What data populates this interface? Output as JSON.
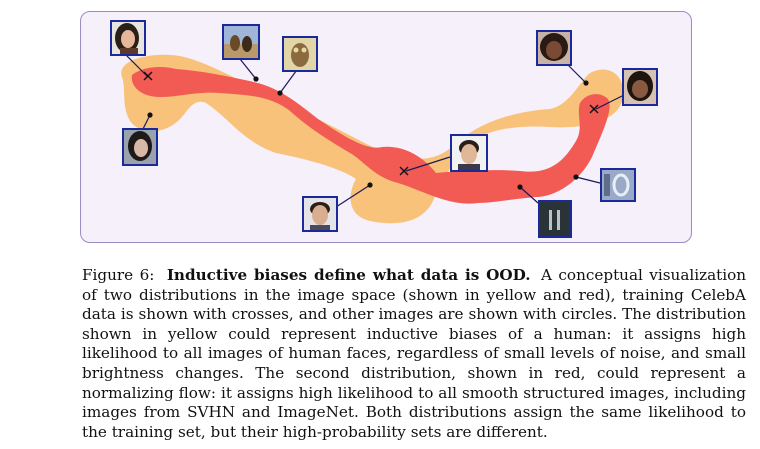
{
  "figure": {
    "colors": {
      "yellow_distribution": "#f8c27a",
      "red_distribution": "#f25a54",
      "panel_background": "#f6f0fb",
      "panel_border": "#9b8cc4",
      "thumbnail_border": "#1a2a9a"
    },
    "markers": {
      "training_celeba": "cross",
      "other_images": "circle"
    },
    "thumbnails": [
      "celeba-face-top-left",
      "imagenet-dogs",
      "imagenet-owl",
      "celeba-face-mid-left",
      "celeba-face-top-right",
      "celeba-face-right",
      "celeba-face-center",
      "celeba-face-bottom",
      "svhn-digit-0",
      "svhn-digit-11"
    ]
  },
  "caption": {
    "label": "Figure 6:",
    "title": "Inductive biases define what data is OOD.",
    "body": "A conceptual visualization of two distributions in the image space (shown in yellow and red), training CelebA data is shown with crosses, and other images are shown with circles. The distribution shown in yellow could represent inductive biases of a human: it assigns high likelihood to all images of human faces, regardless of small levels of noise, and small brightness changes. The second distribution, shown in red, could represent a normalizing flow: it assigns high likelihood to all smooth structured images, including images from SVHN and ImageNet. Both distributions assign the same likelihood to the training set, but their high-probability sets are different."
  }
}
